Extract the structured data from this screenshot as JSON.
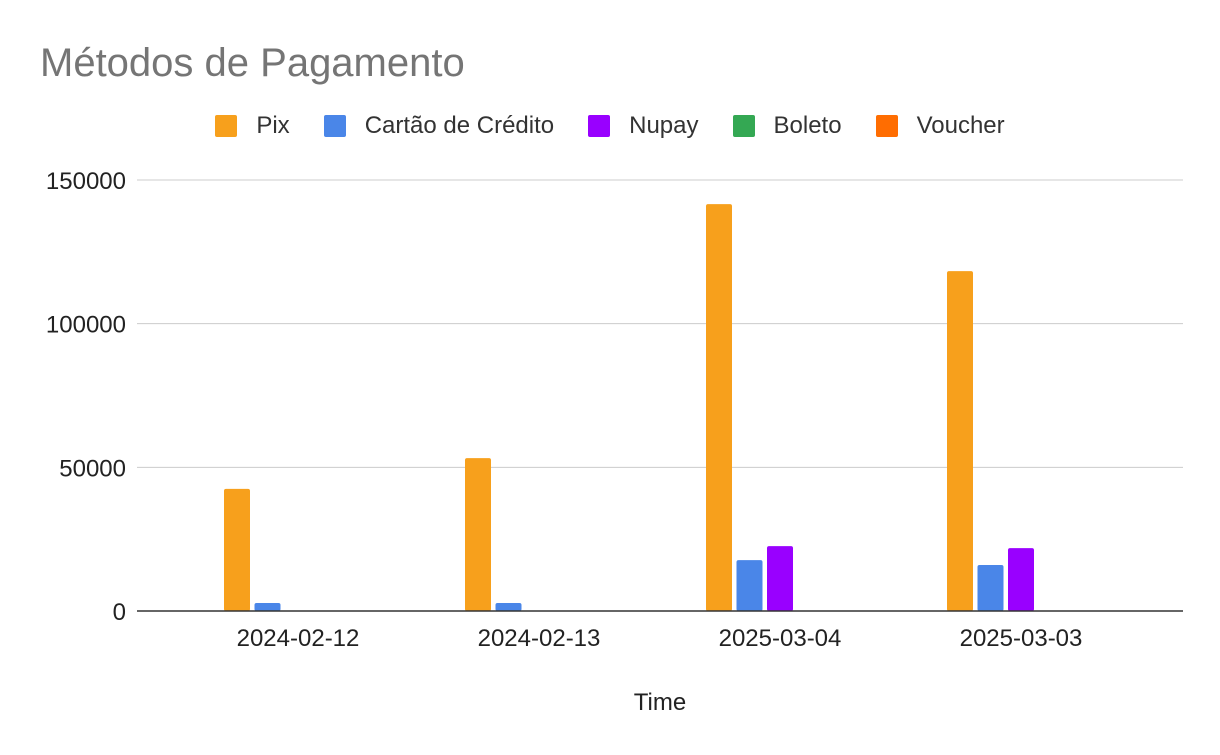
{
  "chart_data": {
    "type": "bar",
    "title": "Métodos de Pagamento",
    "xlabel": "Time",
    "categories": [
      "2024-02-12",
      "2024-02-13",
      "2025-03-04",
      "2025-03-03"
    ],
    "series": [
      {
        "name": "Pix",
        "color": "#F7A01C",
        "values": [
          42500,
          53200,
          141600,
          118300
        ]
      },
      {
        "name": "Cartão de Crédito",
        "color": "#4A86E8",
        "values": [
          2800,
          2800,
          17700,
          16000
        ]
      },
      {
        "name": "Nupay",
        "color": "#9900FF",
        "values": [
          0,
          0,
          22600,
          21900
        ]
      },
      {
        "name": "Boleto",
        "color": "#34A853",
        "values": [
          0,
          0,
          0,
          0
        ]
      },
      {
        "name": "Voucher",
        "color": "#FF6D01",
        "values": [
          0,
          0,
          0,
          0
        ]
      }
    ],
    "ylim": [
      0,
      150000
    ],
    "yticks": [
      0,
      50000,
      100000,
      150000
    ],
    "grid": true,
    "legend_position": "top"
  }
}
